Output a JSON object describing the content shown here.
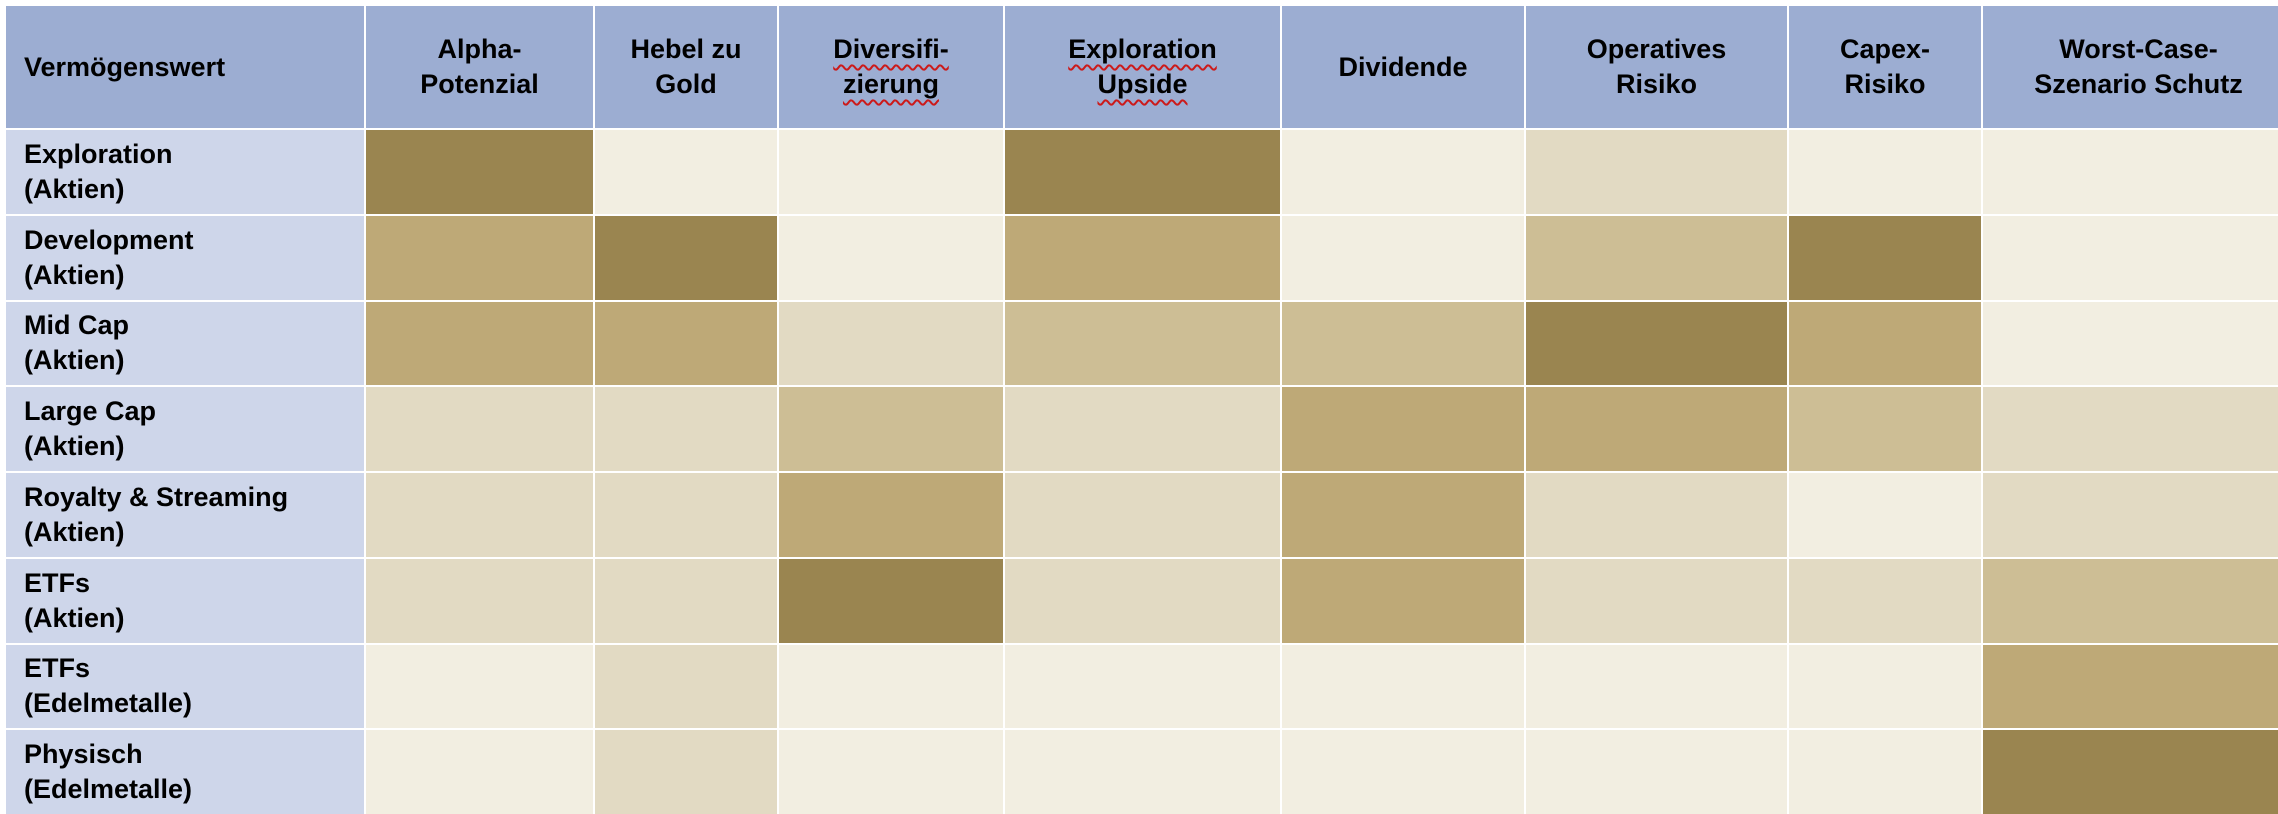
{
  "table": {
    "corner_label": "Vermögenswert",
    "columns": [
      {
        "label": "Alpha-\nPotenzial",
        "spell_flag": false
      },
      {
        "label": "Hebel zu\nGold",
        "spell_flag": false
      },
      {
        "label": "Diversifi-\nzierung",
        "spell_flag": true
      },
      {
        "label": "Exploration\nUpside",
        "spell_flag": true
      },
      {
        "label": "Dividende",
        "spell_flag": false
      },
      {
        "label": "Operatives\nRisiko",
        "spell_flag": false
      },
      {
        "label": "Capex-\nRisiko",
        "spell_flag": false
      },
      {
        "label": "Worst-Case-\nSzenario Schutz",
        "spell_flag": false
      }
    ],
    "rows": [
      {
        "label": "Exploration\n(Aktien)",
        "levels": [
          5,
          1,
          1,
          5,
          1,
          2,
          1,
          1
        ]
      },
      {
        "label": "Development\n(Aktien)",
        "levels": [
          4,
          5,
          1,
          4,
          1,
          3,
          5,
          1
        ]
      },
      {
        "label": "Mid Cap\n(Aktien)",
        "levels": [
          4,
          4,
          2,
          3,
          3,
          5,
          4,
          1
        ]
      },
      {
        "label": "Large Cap\n(Aktien)",
        "levels": [
          2,
          2,
          3,
          2,
          4,
          4,
          3,
          2
        ]
      },
      {
        "label": "Royalty & Streaming\n(Aktien)",
        "levels": [
          2,
          2,
          4,
          2,
          4,
          2,
          1,
          2
        ]
      },
      {
        "label": "ETFs\n(Aktien)",
        "levels": [
          2,
          2,
          5,
          2,
          4,
          2,
          2,
          3
        ]
      },
      {
        "label": "ETFs\n(Edelmetalle)",
        "levels": [
          1,
          2,
          1,
          1,
          1,
          1,
          1,
          4
        ]
      },
      {
        "label": "Physisch\n(Edelmetalle)",
        "levels": [
          1,
          2,
          1,
          1,
          1,
          1,
          1,
          5
        ]
      }
    ]
  },
  "scale_colors": {
    "1": "#f2eee1",
    "2": "#e2dac3",
    "3": "#cdbe95",
    "4": "#bea977",
    "5": "#9a8550"
  },
  "colors": {
    "header_bg": "#9cadd2",
    "row_label_bg": "#ced6ea",
    "spell_underline": "#cc1a1a"
  }
}
